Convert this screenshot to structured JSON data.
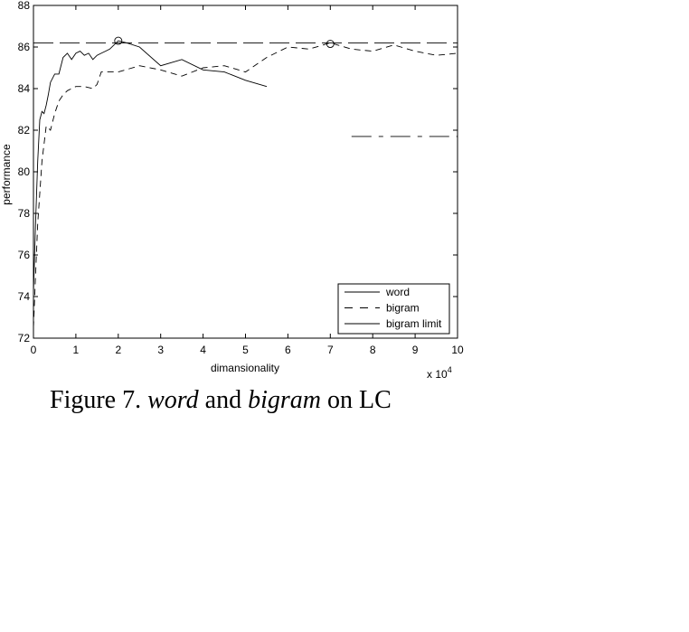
{
  "chart_data": {
    "type": "line",
    "xlabel": "dimansionality",
    "ylabel": "performance",
    "x_multiplier_label": "x 10",
    "x_multiplier_exponent": "4",
    "xlim": [
      0,
      100000
    ],
    "ylim": [
      72,
      88
    ],
    "x_ticks": [
      0,
      10000,
      20000,
      30000,
      40000,
      50000,
      60000,
      70000,
      80000,
      90000,
      100000
    ],
    "x_tick_labels": [
      "0",
      "1",
      "2",
      "3",
      "4",
      "5",
      "6",
      "7",
      "8",
      "9",
      "10"
    ],
    "y_ticks": [
      72,
      74,
      76,
      78,
      80,
      82,
      84,
      86,
      88
    ],
    "y_tick_labels": [
      "72",
      "74",
      "76",
      "78",
      "80",
      "82",
      "84",
      "86",
      "88"
    ],
    "grid": false,
    "legend_position": "bottom-right",
    "series": [
      {
        "name": "word",
        "style": "solid",
        "x": [
          0,
          500,
          1000,
          1500,
          2000,
          2500,
          3000,
          3500,
          4000,
          5000,
          6000,
          7000,
          8000,
          9000,
          10000,
          11000,
          12000,
          13000,
          14000,
          15000,
          16000,
          17000,
          18000,
          19000,
          20000,
          22000,
          25000,
          30000,
          35000,
          40000,
          45000,
          50000,
          55000
        ],
        "y": [
          74.2,
          77.5,
          80.5,
          82.5,
          82.9,
          82.8,
          83.2,
          83.7,
          84.3,
          84.7,
          84.7,
          85.5,
          85.7,
          85.4,
          85.7,
          85.8,
          85.6,
          85.7,
          85.4,
          85.6,
          85.7,
          85.8,
          85.9,
          86.1,
          86.3,
          86.2,
          86.0,
          85.1,
          85.4,
          84.9,
          84.8,
          84.4,
          84.1
        ]
      },
      {
        "name": "bigram",
        "style": "dashed",
        "x": [
          0,
          500,
          1000,
          2000,
          3000,
          4000,
          5000,
          6000,
          7000,
          8000,
          9000,
          10000,
          12000,
          14000,
          15000,
          16000,
          18000,
          20000,
          25000,
          30000,
          35000,
          40000,
          45000,
          50000,
          55000,
          60000,
          65000,
          70000,
          75000,
          80000,
          85000,
          90000,
          95000,
          100000
        ],
        "y": [
          72.5,
          75.0,
          77.5,
          80.5,
          82.2,
          82.0,
          82.8,
          83.4,
          83.7,
          83.9,
          84.0,
          84.1,
          84.1,
          84.0,
          84.2,
          84.8,
          84.8,
          84.8,
          85.1,
          84.9,
          84.6,
          85.0,
          85.1,
          84.8,
          85.5,
          86.0,
          85.9,
          86.2,
          85.9,
          85.8,
          86.1,
          85.8,
          85.6,
          85.7
        ]
      },
      {
        "name": "bigram limit",
        "style": "long-dash",
        "x": [
          0,
          100000
        ],
        "y": [
          86.2,
          86.2
        ]
      },
      {
        "name": "",
        "style": "dash-dot",
        "x": [
          75000,
          100000
        ],
        "y": [
          81.7,
          81.7
        ]
      }
    ],
    "markers": [
      {
        "shape": "circle",
        "x": 20000,
        "y": 86.3
      },
      {
        "shape": "circle",
        "x": 70000,
        "y": 86.15
      }
    ]
  },
  "caption": {
    "prefix": "Figure 7. ",
    "word": "word",
    "and": " and ",
    "bigram": "bigram",
    "suffix": " on LC"
  }
}
